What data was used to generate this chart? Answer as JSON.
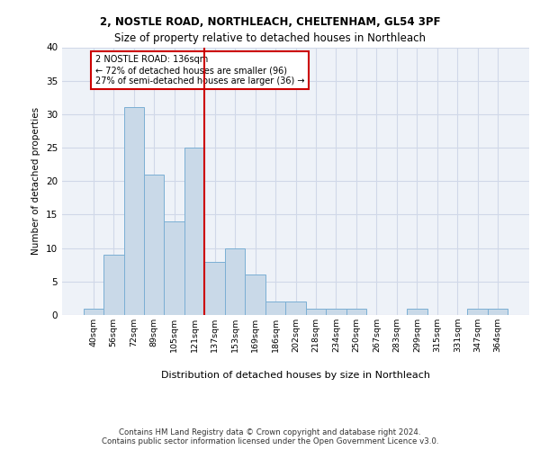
{
  "title1": "2, NOSTLE ROAD, NORTHLEACH, CHELTENHAM, GL54 3PF",
  "title2": "Size of property relative to detached houses in Northleach",
  "xlabel": "Distribution of detached houses by size in Northleach",
  "ylabel": "Number of detached properties",
  "footer1": "Contains HM Land Registry data © Crown copyright and database right 2024.",
  "footer2": "Contains public sector information licensed under the Open Government Licence v3.0.",
  "bins": [
    "40sqm",
    "56sqm",
    "72sqm",
    "89sqm",
    "105sqm",
    "121sqm",
    "137sqm",
    "153sqm",
    "169sqm",
    "186sqm",
    "202sqm",
    "218sqm",
    "234sqm",
    "250sqm",
    "267sqm",
    "283sqm",
    "299sqm",
    "315sqm",
    "331sqm",
    "347sqm",
    "364sqm"
  ],
  "values": [
    1,
    9,
    31,
    21,
    14,
    25,
    8,
    10,
    6,
    2,
    2,
    1,
    1,
    1,
    0,
    0,
    1,
    0,
    0,
    1,
    1
  ],
  "bar_color": "#c9d9e8",
  "bar_edge_color": "#7bafd4",
  "vline_x": 5.5,
  "vline_color": "#cc0000",
  "annotation_text": "2 NOSTLE ROAD: 136sqm\n← 72% of detached houses are smaller (96)\n27% of semi-detached houses are larger (36) →",
  "annotation_box_color": "white",
  "annotation_box_edge": "#cc0000",
  "grid_color": "#d0d8e8",
  "bg_color": "#eef2f8",
  "ylim": [
    0,
    40
  ],
  "yticks": [
    0,
    5,
    10,
    15,
    20,
    25,
    30,
    35,
    40
  ]
}
